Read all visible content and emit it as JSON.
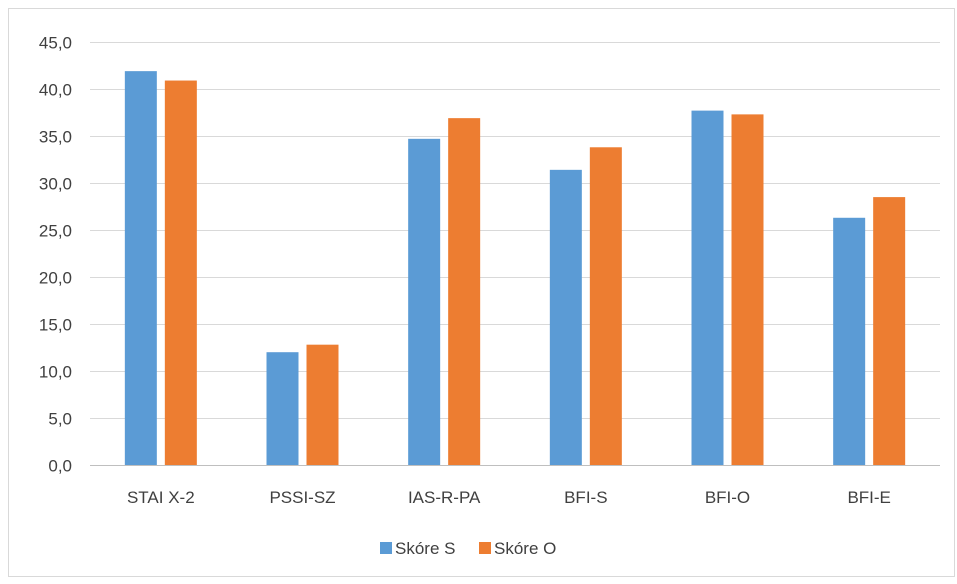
{
  "chart_data": {
    "type": "bar",
    "title": "",
    "xlabel": "",
    "ylabel": "",
    "categories": [
      "STAI X-2",
      "PSSI-SZ",
      "IAS-R-PA",
      "BFI-S",
      "BFI-O",
      "BFI-E"
    ],
    "series": [
      {
        "name": "Skóre S",
        "color": "#5B9BD5",
        "values": [
          41.9,
          12.0,
          34.7,
          31.4,
          37.7,
          26.3
        ]
      },
      {
        "name": "Skóre O",
        "color": "#ED7D31",
        "values": [
          40.9,
          12.8,
          36.9,
          33.8,
          37.3,
          28.5
        ]
      }
    ],
    "ylim": [
      0,
      45
    ],
    "y_ticks": [
      "0,0",
      "5,0",
      "10,0",
      "15,0",
      "20,0",
      "25,0",
      "30,0",
      "35,0",
      "40,0",
      "45,0"
    ],
    "y_tick_step": 5,
    "grid": true,
    "legend_position": "bottom"
  }
}
